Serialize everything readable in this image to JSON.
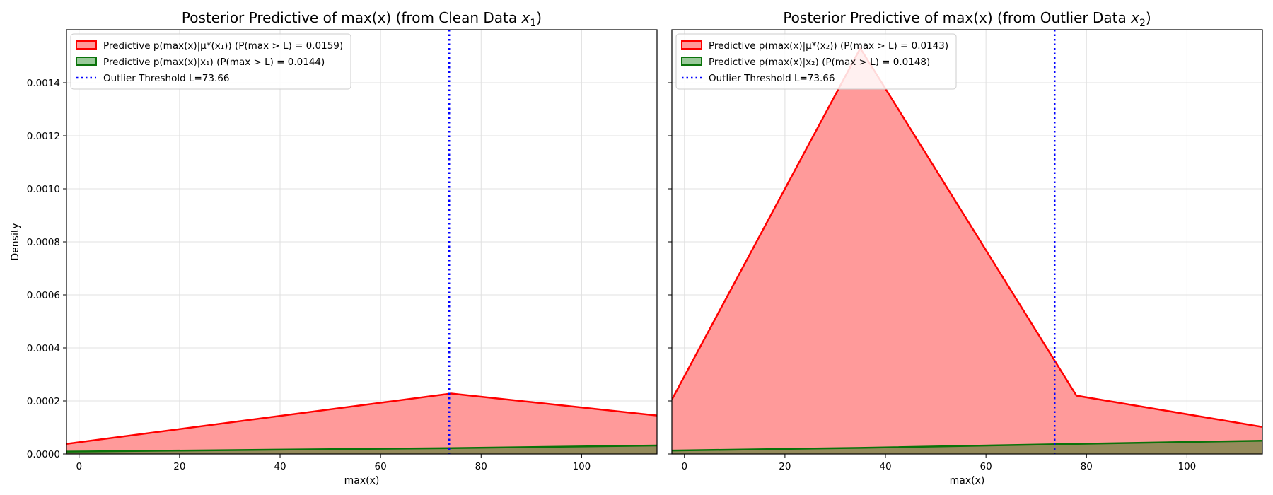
{
  "colors": {
    "red_line": "#ff0000",
    "red_fill": "#ff9a9a",
    "green_line": "#0a730a",
    "green_fill": "#9ac99a",
    "overlap_fill": "#948a5a",
    "threshold": "#0000ff",
    "grid": "#e0e0e0"
  },
  "chart_data": [
    {
      "type": "area",
      "title": "Posterior Predictive of max(x) (from Clean Data x1)",
      "title_text": "Posterior Predictive of max(x) (from Clean Data ",
      "title_var": "x",
      "title_sub": "1",
      "title_close": ")",
      "xlabel": "max(x)",
      "ylabel": "Density",
      "xlim": [
        -2.5,
        115
      ],
      "ylim": [
        0,
        0.0016
      ],
      "xticks": [
        0,
        20,
        40,
        60,
        80,
        100
      ],
      "yticks": [
        0.0,
        0.0002,
        0.0004,
        0.0006,
        0.0008,
        0.001,
        0.0012,
        0.0014
      ],
      "ytick_labels": [
        "0.0000",
        "0.0002",
        "0.0004",
        "0.0006",
        "0.0008",
        "0.0010",
        "0.0012",
        "0.0014"
      ],
      "grid": true,
      "legend_position": "top-left",
      "threshold": {
        "x": 73.66,
        "label": "Outlier Threshold L=73.66"
      },
      "series": [
        {
          "name": "Predictive p(max(x)|μ*(x1)) (P(max > L) = 0.0159)",
          "legend_text": "Predictive p(max(x)|μ*(x₁)) (P(max > L) = 0.0159)",
          "color": "red",
          "x": [
            -2.5,
            74,
            115
          ],
          "y": [
            3.8e-05,
            0.000228,
            0.000145
          ]
        },
        {
          "name": "Predictive p(max(x)|x1) (P(max > L) = 0.0144)",
          "legend_text": "Predictive p(max(x)|x₁) (P(max > L) = 0.0144)",
          "color": "green",
          "x": [
            -2.5,
            74,
            115
          ],
          "y": [
            9e-06,
            2.2e-05,
            3.2e-05
          ]
        }
      ]
    },
    {
      "type": "area",
      "title": "Posterior Predictive of max(x) (from Outlier Data x2)",
      "title_text": "Posterior Predictive of max(x) (from Outlier Data ",
      "title_var": "x",
      "title_sub": "2",
      "title_close": ")",
      "xlabel": "max(x)",
      "ylabel": "",
      "xlim": [
        -2.5,
        115
      ],
      "ylim": [
        0,
        0.0016
      ],
      "xticks": [
        0,
        20,
        40,
        60,
        80,
        100
      ],
      "yticks": [
        0.0,
        0.0002,
        0.0004,
        0.0006,
        0.0008,
        0.001,
        0.0012,
        0.0014
      ],
      "ytick_labels": [],
      "grid": true,
      "legend_position": "top-left",
      "threshold": {
        "x": 73.66,
        "label": "Outlier Threshold L=73.66"
      },
      "series": [
        {
          "name": "Predictive p(max(x)|μ*(x2)) (P(max > L) = 0.0143)",
          "legend_text": "Predictive p(max(x)|μ*(x₂)) (P(max > L) = 0.0143)",
          "color": "red",
          "x": [
            -2.5,
            35,
            78,
            115
          ],
          "y": [
            0.000205,
            0.00153,
            0.00022,
            0.000102
          ]
        },
        {
          "name": "Predictive p(max(x)|x2) (P(max > L) = 0.0148)",
          "legend_text": "Predictive p(max(x)|x₂) (P(max > L) = 0.0148)",
          "color": "green",
          "x": [
            -2.5,
            35,
            78,
            115
          ],
          "y": [
            1.3e-05,
            2.3e-05,
            3.8e-05,
            5e-05
          ]
        }
      ]
    }
  ]
}
